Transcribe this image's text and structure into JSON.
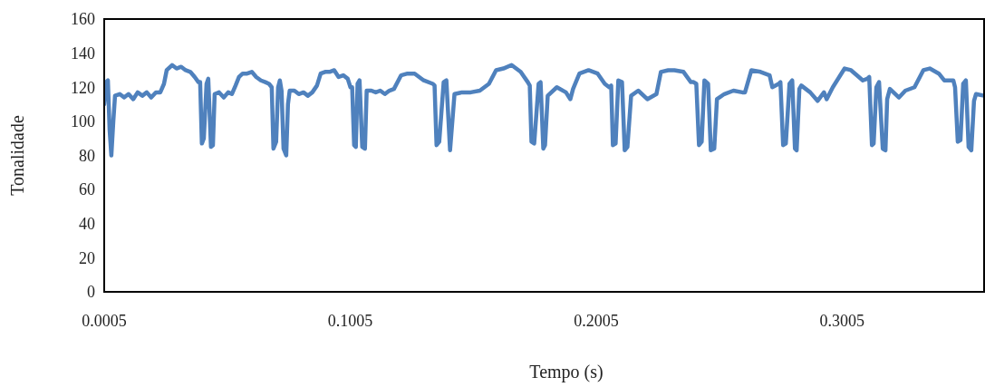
{
  "chart_data": {
    "type": "line",
    "xlabel": "Tempo (s)",
    "ylabel": "Tonalidade",
    "xlim": [
      0.0005,
      0.3582
    ],
    "ylim": [
      0,
      160
    ],
    "xticks": [
      {
        "value": 0.0005,
        "label": "0.0005"
      },
      {
        "value": 0.1005,
        "label": "0.1005"
      },
      {
        "value": 0.2005,
        "label": "0.2005"
      },
      {
        "value": 0.3005,
        "label": "0.3005"
      }
    ],
    "yticks": [
      0,
      20,
      40,
      60,
      80,
      100,
      120,
      140,
      160
    ],
    "grid": false,
    "marker": "none",
    "line_style": "solid",
    "x": [
      0.0005,
      0.0012,
      0.002,
      0.0027,
      0.0034,
      0.0042,
      0.0049,
      0.0068,
      0.0086,
      0.0104,
      0.0123,
      0.0141,
      0.016,
      0.0178,
      0.0196,
      0.0215,
      0.0233,
      0.0248,
      0.0259,
      0.0281,
      0.0299,
      0.0318,
      0.0336,
      0.0355,
      0.0373,
      0.0388,
      0.0395,
      0.0402,
      0.041,
      0.0421,
      0.0428,
      0.0439,
      0.0447,
      0.0454,
      0.0472,
      0.0491,
      0.0509,
      0.0524,
      0.0539,
      0.0553,
      0.0568,
      0.0586,
      0.0605,
      0.0623,
      0.0642,
      0.066,
      0.0675,
      0.0686,
      0.0693,
      0.0704,
      0.0712,
      0.0719,
      0.0726,
      0.0734,
      0.0745,
      0.0752,
      0.0759,
      0.0778,
      0.0796,
      0.0815,
      0.0833,
      0.0851,
      0.087,
      0.0885,
      0.0903,
      0.0921,
      0.094,
      0.0958,
      0.0977,
      0.0995,
      0.1006,
      0.1013,
      0.1021,
      0.1028,
      0.1035,
      0.1043,
      0.1054,
      0.1065,
      0.1072,
      0.1091,
      0.1109,
      0.1127,
      0.1146,
      0.1164,
      0.1183,
      0.1212,
      0.1238,
      0.1267,
      0.1304,
      0.1341,
      0.1348,
      0.1356,
      0.1367,
      0.1385,
      0.1396,
      0.1411,
      0.1429,
      0.1459,
      0.1495,
      0.1532,
      0.1569,
      0.1598,
      0.1628,
      0.1661,
      0.1698,
      0.1727,
      0.1735,
      0.1742,
      0.1753,
      0.1771,
      0.1779,
      0.179,
      0.1797,
      0.1808,
      0.1845,
      0.1882,
      0.19,
      0.1911,
      0.1937,
      0.1974,
      0.2011,
      0.204,
      0.2058,
      0.2066,
      0.2073,
      0.2084,
      0.2095,
      0.211,
      0.2121,
      0.2132,
      0.2147,
      0.2176,
      0.2213,
      0.225,
      0.2268,
      0.2298,
      0.2323,
      0.236,
      0.239,
      0.2401,
      0.2412,
      0.2423,
      0.2434,
      0.2445,
      0.246,
      0.2471,
      0.2485,
      0.2496,
      0.2526,
      0.2563,
      0.2599,
      0.261,
      0.2636,
      0.2673,
      0.271,
      0.2721,
      0.2747,
      0.2754,
      0.2765,
      0.2776,
      0.2791,
      0.2802,
      0.2813,
      0.282,
      0.2831,
      0.2839,
      0.2875,
      0.2905,
      0.2931,
      0.2942,
      0.2967,
      0.3015,
      0.3041,
      0.3089,
      0.3107,
      0.3115,
      0.3126,
      0.3133,
      0.3144,
      0.3155,
      0.317,
      0.3181,
      0.3188,
      0.3199,
      0.3236,
      0.3262,
      0.3299,
      0.3335,
      0.3361,
      0.3398,
      0.342,
      0.3457,
      0.3464,
      0.3475,
      0.3486,
      0.3497,
      0.3508,
      0.3519,
      0.353,
      0.3541,
      0.3549,
      0.3582
    ],
    "series": [
      {
        "color": "#4f81bd",
        "values": [
          110,
          123,
          124,
          95,
          80,
          100,
          115,
          116,
          114,
          116,
          113,
          117,
          115,
          117,
          114,
          117,
          117,
          122,
          130,
          133,
          131,
          132,
          130,
          129,
          126,
          123,
          123,
          87,
          90,
          122,
          125,
          85,
          86,
          116,
          117,
          114,
          117,
          116,
          121,
          126,
          128,
          128,
          129,
          126,
          124,
          123,
          122,
          120,
          84,
          88,
          120,
          124,
          118,
          84,
          80,
          110,
          118,
          118,
          116,
          117,
          115,
          117,
          121,
          128,
          129,
          129,
          130,
          126,
          127,
          125,
          120,
          120,
          86,
          85,
          122,
          124,
          85,
          84,
          118,
          118,
          117,
          118,
          116,
          118,
          119,
          127,
          128,
          128,
          124,
          122,
          121,
          86,
          88,
          123,
          124,
          83,
          116,
          117,
          117,
          118,
          122,
          130,
          131,
          133,
          129,
          123,
          121,
          88,
          87,
          122,
          123,
          84,
          86,
          115,
          120,
          117,
          113,
          119,
          128,
          130,
          128,
          122,
          120,
          121,
          86,
          87,
          124,
          123,
          83,
          85,
          115,
          118,
          113,
          116,
          129,
          130,
          130,
          129,
          123,
          123,
          122,
          86,
          88,
          124,
          122,
          83,
          84,
          113,
          116,
          118,
          117,
          117,
          130,
          129,
          127,
          120,
          122,
          123,
          86,
          87,
          122,
          124,
          84,
          83,
          119,
          121,
          117,
          112,
          117,
          113,
          120,
          131,
          130,
          124,
          125,
          126,
          86,
          87,
          120,
          123,
          84,
          83,
          113,
          119,
          114,
          118,
          120,
          130,
          131,
          128,
          124,
          124,
          120,
          88,
          89,
          122,
          124,
          85,
          83,
          112,
          116,
          115
        ]
      }
    ]
  }
}
